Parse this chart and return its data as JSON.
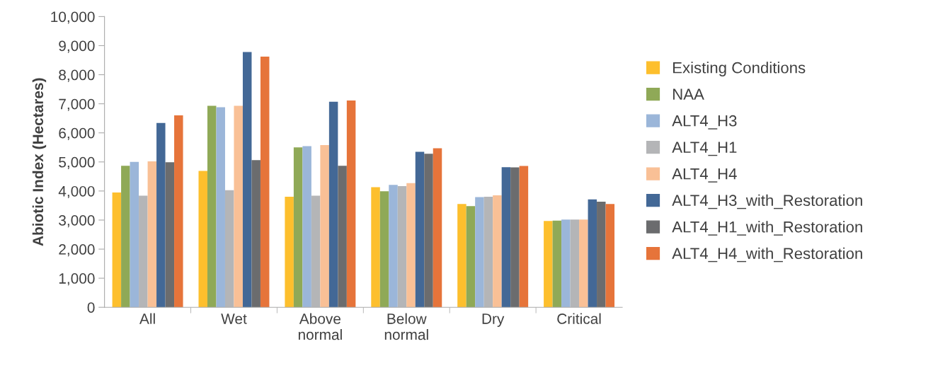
{
  "chart_data": {
    "type": "bar",
    "ylabel": "Abiotic Index (Hectares)",
    "categories": [
      "All",
      "Wet",
      "Above\nnormal",
      "Below\nnormal",
      "Dry",
      "Critical"
    ],
    "series": [
      {
        "name": "Existing Conditions",
        "color": "#fdbf2d",
        "values": [
          3950,
          4690,
          3800,
          4130,
          3550,
          2970
        ]
      },
      {
        "name": "NAA",
        "color": "#8fa957",
        "values": [
          4870,
          6930,
          5500,
          3990,
          3480,
          2980
        ]
      },
      {
        "name": "ALT4_H3",
        "color": "#9bb6d9",
        "values": [
          5000,
          6880,
          5540,
          4210,
          3790,
          3020
        ]
      },
      {
        "name": "ALT4_H1",
        "color": "#b4b5b7",
        "values": [
          3840,
          4030,
          3840,
          4170,
          3800,
          3020
        ]
      },
      {
        "name": "ALT4_H4",
        "color": "#f9c096",
        "values": [
          5020,
          6930,
          5580,
          4270,
          3850,
          3020
        ]
      },
      {
        "name": "ALT4_H3_with_Restoration",
        "color": "#436896",
        "values": [
          6340,
          8780,
          7070,
          5350,
          4820,
          3710
        ]
      },
      {
        "name": "ALT4_H1_with_Restoration",
        "color": "#6b6c6e",
        "values": [
          4990,
          5060,
          4870,
          5280,
          4810,
          3630
        ]
      },
      {
        "name": "ALT4_H4_with_Restoration",
        "color": "#e6743a",
        "values": [
          6600,
          8620,
          7110,
          5470,
          4860,
          3550
        ]
      }
    ],
    "ylim": [
      0,
      10000
    ],
    "yticks": [
      {
        "value": 0,
        "label": "0"
      },
      {
        "value": 1000,
        "label": "1,000"
      },
      {
        "value": 2000,
        "label": "2,000"
      },
      {
        "value": 3000,
        "label": "3,000"
      },
      {
        "value": 4000,
        "label": "4,000"
      },
      {
        "value": 5000,
        "label": "5,000"
      },
      {
        "value": 6000,
        "label": "6,000"
      },
      {
        "value": 7000,
        "label": "7,000"
      },
      {
        "value": 8000,
        "label": "8,000"
      },
      {
        "value": 9000,
        "label": "9,000"
      },
      {
        "value": 10000,
        "label": "10,000"
      }
    ],
    "grid": false,
    "legend": "right"
  }
}
